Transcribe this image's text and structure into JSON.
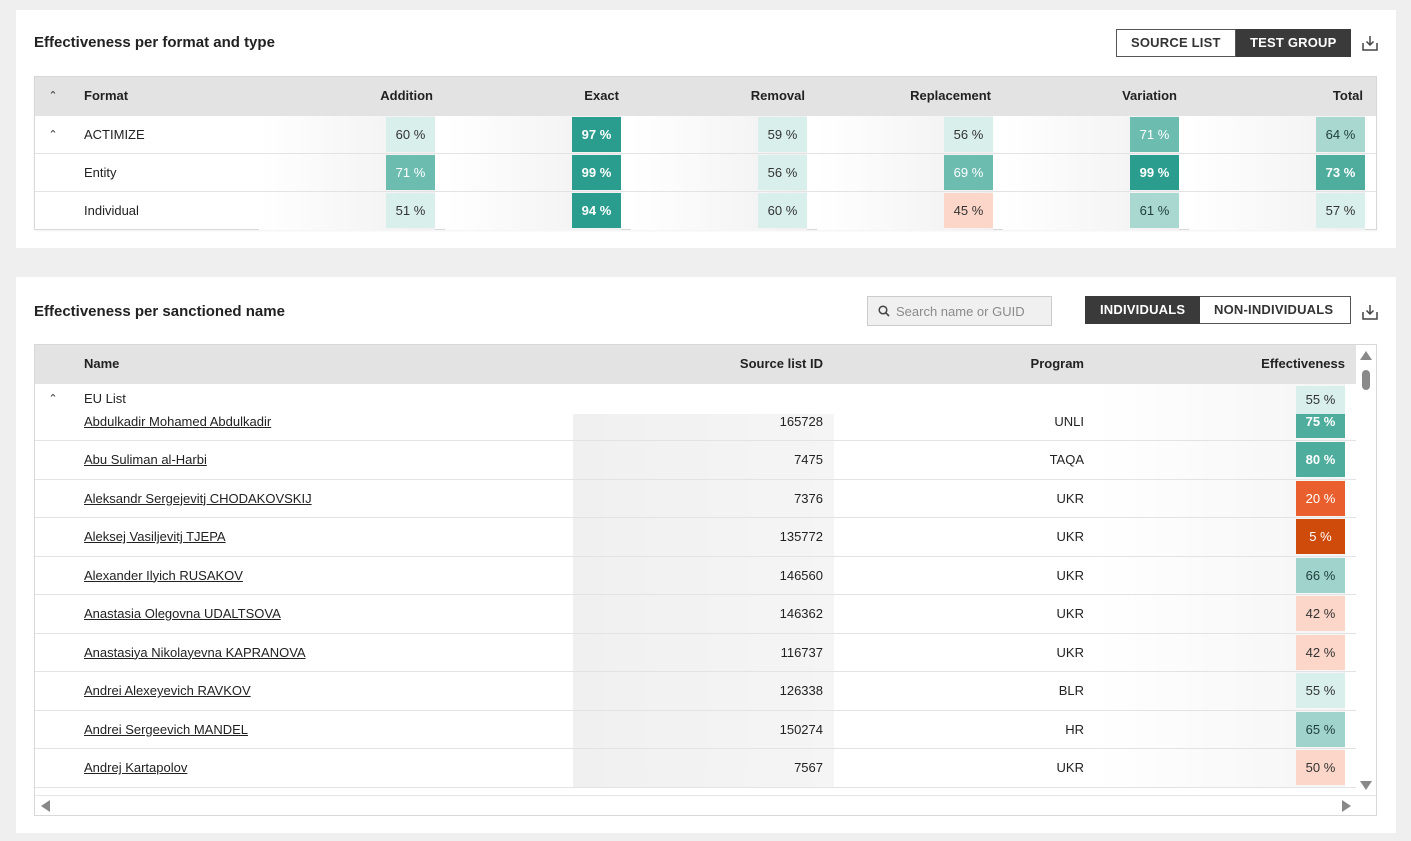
{
  "colors": {
    "page_bg": "#efefef",
    "header_bg": "#e3e3e3",
    "toggle_active": "#3a3a3a",
    "eff_scale": [
      "#d9efec",
      "#a4d6cf",
      "#6dbcb0",
      "#2a9d8f",
      "#fcd8cc",
      "#e9602e",
      "#d14f10"
    ]
  },
  "format_panel": {
    "title": "Effectiveness per format and type",
    "toggle": {
      "source_list": "SOURCE LIST",
      "test_group": "TEST GROUP",
      "active": "test_group"
    },
    "download_icon": "download-icon",
    "columns": {
      "format": "Format",
      "addition": "Addition",
      "exact": "Exact",
      "removal": "Removal",
      "replacement": "Replacement",
      "variation": "Variation",
      "total": "Total"
    },
    "rows": [
      {
        "label": "ACTIMIZE",
        "group": true,
        "values": [
          "60 %",
          "97 %",
          "59 %",
          "56 %",
          "71 %",
          "64 %"
        ]
      },
      {
        "label": "Entity",
        "group": false,
        "values": [
          "71 %",
          "99 %",
          "56 %",
          "69 %",
          "99 %",
          "73 %"
        ]
      },
      {
        "label": "Individual",
        "group": false,
        "values": [
          "51 %",
          "94 %",
          "60 %",
          "45 %",
          "61 %",
          "57 %"
        ]
      }
    ]
  },
  "name_panel": {
    "title": "Effectiveness per sanctioned name",
    "search": {
      "placeholder": "Search name or GUID",
      "value": ""
    },
    "toggle": {
      "individuals": "INDIVIDUALS",
      "non_individuals": "NON-INDIVIDUALS",
      "active": "individuals"
    },
    "columns": {
      "name": "Name",
      "source_list_id": "Source list ID",
      "program": "Program",
      "effectiveness": "Effectiveness"
    },
    "group": {
      "label": "EU List",
      "effectiveness": "55 %"
    },
    "rows": [
      {
        "name": "Abdulkadir Mohamed Abdulkadir",
        "source_list_id": "165728",
        "program": "UNLI",
        "effectiveness": "75 %"
      },
      {
        "name": "Abu Suliman al-Harbi",
        "source_list_id": "7475",
        "program": "TAQA",
        "effectiveness": "80 %"
      },
      {
        "name": "Aleksandr Sergejevitj CHODAKOVSKIJ",
        "source_list_id": "7376",
        "program": "UKR",
        "effectiveness": "20 %"
      },
      {
        "name": "Aleksej Vasiljevitj TJEPA",
        "source_list_id": "135772",
        "program": "UKR",
        "effectiveness": "5 %"
      },
      {
        "name": "Alexander Ilyich RUSAKOV",
        "source_list_id": "146560",
        "program": "UKR",
        "effectiveness": "66 %"
      },
      {
        "name": "Anastasia Olegovna UDALTSOVA",
        "source_list_id": "146362",
        "program": "UKR",
        "effectiveness": "42 %"
      },
      {
        "name": "Anastasiya Nikolayevna KAPRANOVA",
        "source_list_id": "116737",
        "program": "UKR",
        "effectiveness": "42 %"
      },
      {
        "name": "Andrei Alexeyevich RAVKOV",
        "source_list_id": "126338",
        "program": "BLR",
        "effectiveness": "55 %"
      },
      {
        "name": "Andrei Sergeevich MANDEL",
        "source_list_id": "150274",
        "program": "HR",
        "effectiveness": "65 %"
      },
      {
        "name": "Andrej Kartapolov",
        "source_list_id": "7567",
        "program": "UKR",
        "effectiveness": "50 %"
      }
    ]
  }
}
